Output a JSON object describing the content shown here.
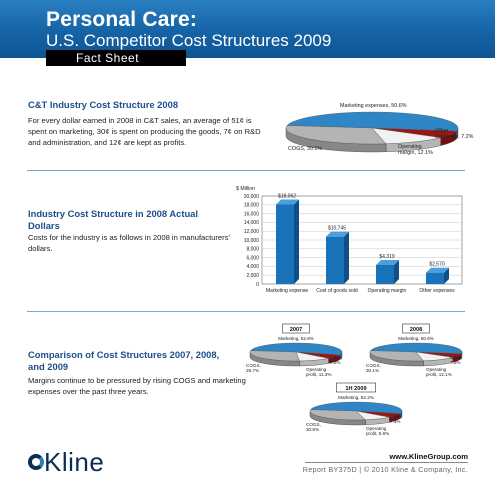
{
  "header": {
    "title": "Personal Care:",
    "subtitle": "U.S. Competitor Cost Structures 2009",
    "badge": "Fact Sheet"
  },
  "section1": {
    "title": "C&T Industry Cost Structure 2008",
    "body": "For every dollar earned in 2008 in C&T sales, an average of 51¢ is spent on marketing, 30¢ is spent on producing the goods, 7¢ on R&D and administration, and 12¢ are kept as profits."
  },
  "section2": {
    "title": "Industry Cost Structure in 2008 Actual Dollars",
    "body": "Costs for the industry is as follows in 2008 in manufacturers' dollars."
  },
  "section3": {
    "title": "Comparison of Cost Structures 2007, 2008, and 2009",
    "body": "Margins continue to be pressured by rising COGS and marketing expenses over the past three years."
  },
  "footer": {
    "url": "www.KlineGroup.com",
    "report": "Report BY375D | © 2010 Kline & Company, Inc.",
    "logo_text": "Kline"
  },
  "colors": {
    "header_blue": "#1563a6",
    "title_blue": "#1c4f8a",
    "bar_blue": "#1a73b8",
    "pie_marketing": "#2f86c6",
    "pie_other": "#9c1515",
    "pie_cogs": "#b4b4b4",
    "pie_margin": "#f2f2f2"
  },
  "chart_data": [
    {
      "type": "pie",
      "labels": [
        "Marketing expenses, 50.6%",
        "Other expenses, 7.2%",
        "Operating margin, 12.1%",
        "COGS, 30.1%"
      ],
      "categories": [
        "Marketing expenses",
        "Other expenses",
        "Operating margin",
        "COGS"
      ],
      "values": [
        50.6,
        7.2,
        12.1,
        30.1
      ]
    },
    {
      "type": "bar",
      "ylabel": "$ Million",
      "categories": [
        "Marketing expense",
        "Cost of goods sold",
        "Operating margin",
        "Other expenses"
      ],
      "values": [
        18062,
        10745,
        4319,
        2570
      ],
      "value_labels": [
        "$18,062",
        "$10,745",
        "$4,319",
        "$2,570"
      ],
      "ylim": [
        0,
        20000
      ],
      "yticks": [
        "0",
        "2,000",
        "4,000",
        "6,000",
        "8,000",
        "10,000",
        "12,000",
        "14,000",
        "16,000",
        "18,000",
        "20,000"
      ],
      "grid": true
    },
    {
      "type": "pie",
      "title": "2007",
      "labels": [
        "Marketing, 52.8%",
        "Other, 7.2%",
        "Operating profit, 11.3%",
        "COGS, 28.7%"
      ],
      "values": [
        52.8,
        7.2,
        11.3,
        28.7
      ]
    },
    {
      "type": "pie",
      "title": "2008",
      "labels": [
        "Marketing, 50.6%",
        "Other, 7.2%",
        "Operating profit, 12.1%",
        "COGS, 30.1%"
      ],
      "values": [
        50.6,
        7.2,
        12.1,
        30.1
      ]
    },
    {
      "type": "pie",
      "title": "1H 2009",
      "labels": [
        "Marketing, 52.2%",
        "Other, 7.4%",
        "Operating profit, 9.6%",
        "COGS, 30.8%"
      ],
      "values": [
        52.2,
        7.4,
        9.6,
        30.8
      ]
    }
  ]
}
